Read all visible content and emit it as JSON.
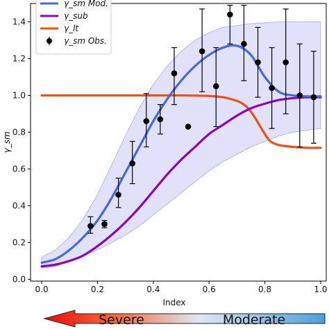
{
  "chart_data": {
    "type": "line",
    "xlabel": "Index",
    "ylabel": "γ_sm",
    "xlim": [
      -0.04,
      1.02
    ],
    "ylim": [
      -0.01,
      1.5
    ],
    "xticks": [
      "0.0",
      "0.2",
      "0.4",
      "0.6",
      "0.8",
      "1.0"
    ],
    "yticks": [
      "0.0",
      "0.2",
      "0.4",
      "0.6",
      "0.8",
      "1.0",
      "1.2",
      "1.4"
    ],
    "grid": false,
    "legend_position": "top-left",
    "legend": [
      {
        "label": "γ_sm Mod.",
        "kind": "line",
        "color": "#4169e1"
      },
      {
        "label": "γ_sub",
        "kind": "line",
        "color": "#8b00c8"
      },
      {
        "label": "γ_lt",
        "kind": "line",
        "color": "#f05010"
      },
      {
        "label": "γ_sm Obs.",
        "kind": "errorbar",
        "color": "#000000"
      }
    ],
    "band": {
      "color": "#c8c8f5",
      "x": [
        0.0,
        0.05,
        0.1,
        0.15,
        0.2,
        0.25,
        0.3,
        0.35,
        0.4,
        0.45,
        0.5,
        0.55,
        0.6,
        0.65,
        0.7,
        0.75,
        0.8,
        0.85,
        0.9,
        0.95,
        1.0
      ],
      "upper": [
        0.12,
        0.16,
        0.23,
        0.33,
        0.46,
        0.62,
        0.78,
        0.93,
        1.06,
        1.16,
        1.24,
        1.3,
        1.34,
        1.37,
        1.38,
        1.39,
        1.395,
        1.4,
        1.4,
        1.4,
        1.4
      ],
      "lower": [
        0.06,
        0.07,
        0.1,
        0.13,
        0.16,
        0.2,
        0.24,
        0.29,
        0.35,
        0.41,
        0.47,
        0.53,
        0.59,
        0.64,
        0.68,
        0.72,
        0.75,
        0.78,
        0.8,
        0.81,
        0.82
      ]
    },
    "series": [
      {
        "name": "γ_sm Mod.",
        "color": "#4169e1",
        "x": [
          0.0,
          0.05,
          0.1,
          0.15,
          0.2,
          0.25,
          0.3,
          0.35,
          0.4,
          0.45,
          0.5,
          0.55,
          0.6,
          0.65,
          0.7,
          0.75,
          0.8,
          0.85,
          0.9,
          0.95,
          1.0
        ],
        "y": [
          0.09,
          0.11,
          0.16,
          0.23,
          0.32,
          0.44,
          0.58,
          0.72,
          0.86,
          0.98,
          1.08,
          1.16,
          1.22,
          1.26,
          1.27,
          1.22,
          1.1,
          1.02,
          1.0,
          0.995,
          0.995
        ]
      },
      {
        "name": "γ_sub",
        "color": "#8b00c8",
        "x": [
          0.0,
          0.05,
          0.1,
          0.15,
          0.2,
          0.25,
          0.3,
          0.35,
          0.4,
          0.45,
          0.5,
          0.55,
          0.6,
          0.65,
          0.7,
          0.75,
          0.8,
          0.85,
          0.9,
          0.95,
          1.0
        ],
        "y": [
          0.07,
          0.08,
          0.1,
          0.13,
          0.18,
          0.24,
          0.31,
          0.39,
          0.48,
          0.57,
          0.65,
          0.72,
          0.79,
          0.84,
          0.89,
          0.93,
          0.955,
          0.975,
          0.985,
          0.99,
          0.99
        ]
      },
      {
        "name": "γ_lt",
        "color": "#f05010",
        "x": [
          0.0,
          0.1,
          0.2,
          0.3,
          0.4,
          0.5,
          0.55,
          0.6,
          0.65,
          0.7,
          0.72,
          0.74,
          0.76,
          0.78,
          0.8,
          0.82,
          0.85,
          0.9,
          0.95,
          1.0
        ],
        "y": [
          1.0,
          1.0,
          1.0,
          1.0,
          1.0,
          1.0,
          0.999,
          0.997,
          0.99,
          0.97,
          0.955,
          0.93,
          0.89,
          0.84,
          0.79,
          0.75,
          0.73,
          0.72,
          0.715,
          0.715
        ]
      }
    ],
    "observations": [
      {
        "x": 0.175,
        "y": 0.29,
        "lo": 0.25,
        "hi": 0.34
      },
      {
        "x": 0.225,
        "y": 0.3,
        "lo": 0.28,
        "hi": 0.32
      },
      {
        "x": 0.275,
        "y": 0.46,
        "lo": 0.39,
        "hi": 0.55
      },
      {
        "x": 0.325,
        "y": 0.63,
        "lo": 0.52,
        "hi": 0.75
      },
      {
        "x": 0.375,
        "y": 0.86,
        "lo": 0.72,
        "hi": 1.01
      },
      {
        "x": 0.425,
        "y": 0.87,
        "lo": 0.79,
        "hi": 0.95
      },
      {
        "x": 0.475,
        "y": 1.12,
        "lo": 0.95,
        "hi": 1.26
      },
      {
        "x": 0.525,
        "y": 0.83,
        "lo": 0.83,
        "hi": 0.83
      },
      {
        "x": 0.575,
        "y": 1.24,
        "lo": 1.02,
        "hi": 1.47
      },
      {
        "x": 0.625,
        "y": 1.05,
        "lo": 0.83,
        "hi": 1.26
      },
      {
        "x": 0.675,
        "y": 1.44,
        "lo": 1.28,
        "hi": 1.49
      },
      {
        "x": 0.725,
        "y": 1.28,
        "lo": 1.08,
        "hi": 1.49
      },
      {
        "x": 0.775,
        "y": 1.18,
        "lo": 0.99,
        "hi": 1.37
      },
      {
        "x": 0.825,
        "y": 1.04,
        "lo": 0.82,
        "hi": 1.26
      },
      {
        "x": 0.875,
        "y": 1.18,
        "lo": 0.9,
        "hi": 1.47
      },
      {
        "x": 0.925,
        "y": 1.0,
        "lo": 0.72,
        "hi": 1.28
      },
      {
        "x": 0.975,
        "y": 0.99,
        "lo": 0.74,
        "hi": 1.24
      }
    ]
  },
  "severity_arrow": {
    "left_label": "Severe",
    "right_label": "Moderate"
  }
}
